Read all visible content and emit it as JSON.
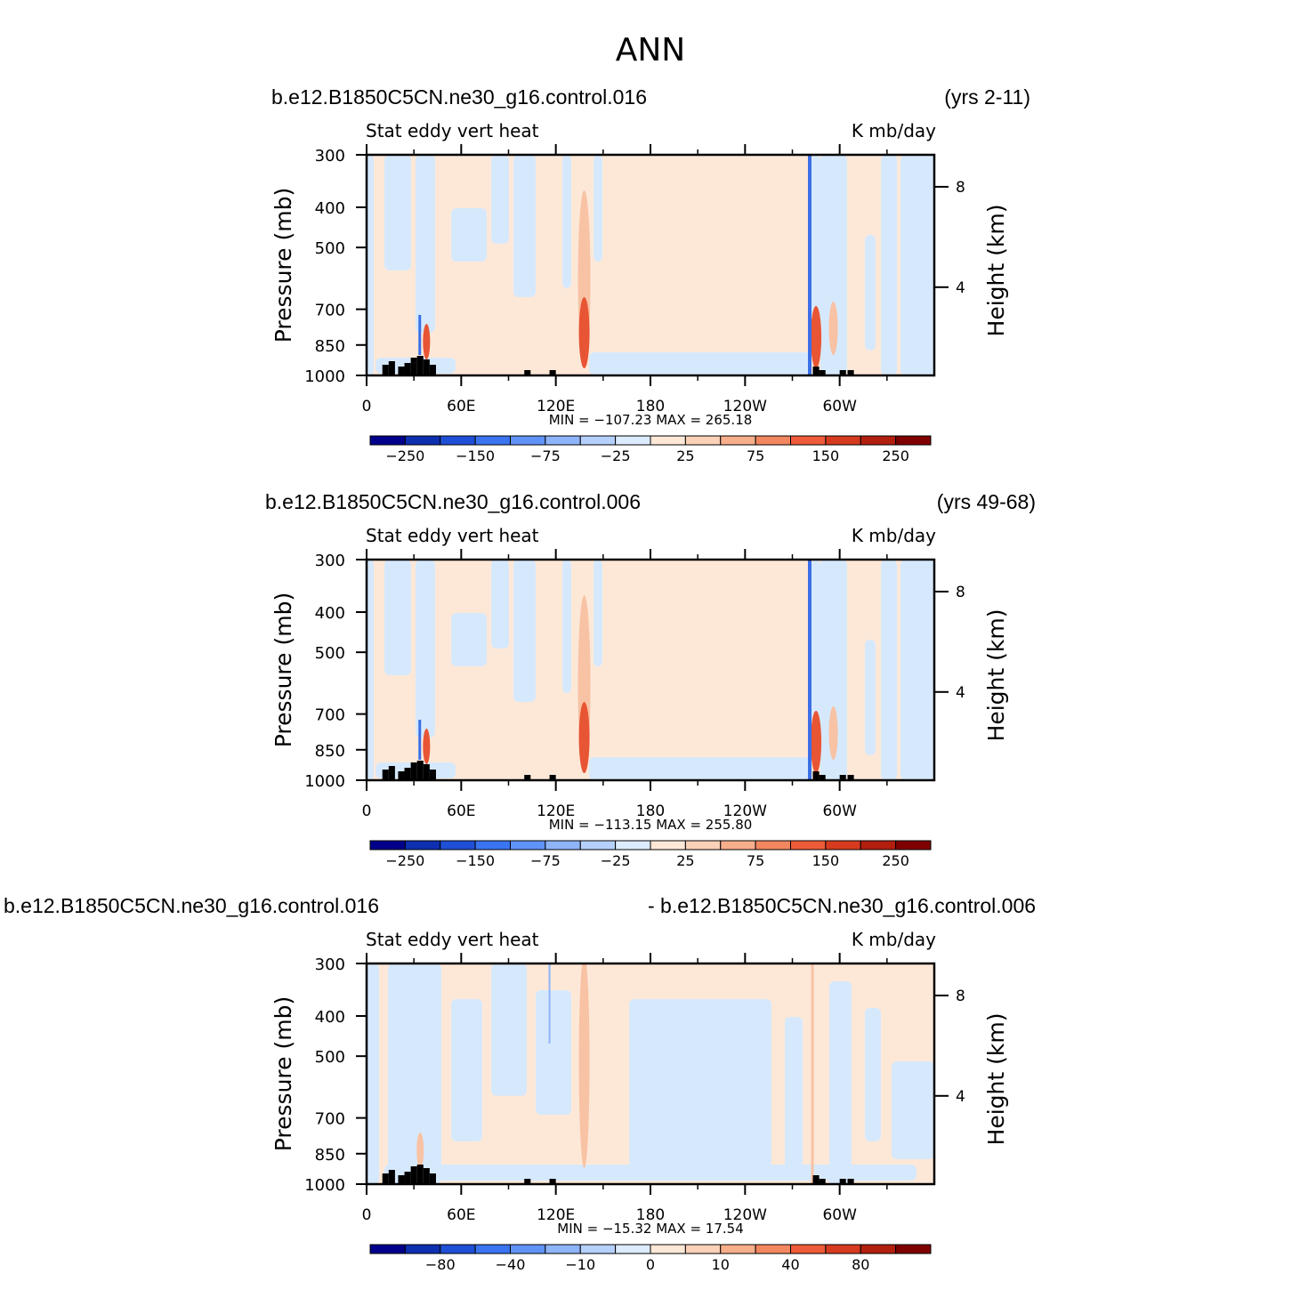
{
  "page_title": "ANN",
  "colors": {
    "black": "#000000",
    "orography": "#000000"
  },
  "chart_data": [
    {
      "type": "heatmap",
      "case_name": "b.e12.B1850C5CN.ne30_g16.control.016",
      "years": "(yrs 2-11)",
      "title_left": "Stat  eddy  vert  heat",
      "title_right": "K  mb/day",
      "ylabel": "Pressure  (mb)",
      "ylabel_right": "Height  (km)",
      "xlabel": "",
      "x_ticks": [
        "0",
        "60E",
        "120E",
        "180",
        "120W",
        "60W"
      ],
      "y_ticks": [
        "300",
        "400",
        "500",
        "700",
        "850",
        "1000"
      ],
      "y_right_ticks": [
        "8",
        "4"
      ],
      "min_max_text": "MIN  =  −107.23   MAX  =  265.18",
      "min": -107.23,
      "max": 265.18,
      "colorbar": {
        "labels": [
          "−250",
          "−150",
          "−75",
          "−25",
          "25",
          "75",
          "150",
          "250"
        ],
        "colors": [
          "#00008b",
          "#0d2fb0",
          "#1f4fd6",
          "#3a74f0",
          "#5f93f7",
          "#8eb4f9",
          "#b5d0fb",
          "#dcebfd",
          "#fde8d8",
          "#fbd1b8",
          "#f7ae8b",
          "#f38760",
          "#ee5b39",
          "#d63b1f",
          "#b31f0f",
          "#7f0000"
        ]
      },
      "fields": {
        "background": "#fde8d8",
        "light_blue": "#d6e9fc",
        "light_salmon": "#f8c2a4",
        "deep_red": "#e85534",
        "blue_line": "#3a6fe8"
      }
    },
    {
      "type": "heatmap",
      "case_name": "b.e12.B1850C5CN.ne30_g16.control.006",
      "years": "(yrs 49-68)",
      "title_left": "Stat  eddy  vert  heat",
      "title_right": "K  mb/day",
      "ylabel": "Pressure  (mb)",
      "ylabel_right": "Height  (km)",
      "xlabel": "",
      "x_ticks": [
        "0",
        "60E",
        "120E",
        "180",
        "120W",
        "60W"
      ],
      "y_ticks": [
        "300",
        "400",
        "500",
        "700",
        "850",
        "1000"
      ],
      "y_right_ticks": [
        "8",
        "4"
      ],
      "min_max_text": "MIN  =  −113.15   MAX  =  255.80",
      "min": -113.15,
      "max": 255.8,
      "colorbar": {
        "labels": [
          "−250",
          "−150",
          "−75",
          "−25",
          "25",
          "75",
          "150",
          "250"
        ],
        "colors": [
          "#00008b",
          "#0d2fb0",
          "#1f4fd6",
          "#3a74f0",
          "#5f93f7",
          "#8eb4f9",
          "#b5d0fb",
          "#dcebfd",
          "#fde8d8",
          "#fbd1b8",
          "#f7ae8b",
          "#f38760",
          "#ee5b39",
          "#d63b1f",
          "#b31f0f",
          "#7f0000"
        ]
      },
      "fields": {
        "background": "#fde8d8",
        "light_blue": "#d6e9fc",
        "light_salmon": "#f8c2a4",
        "deep_red": "#e85534",
        "blue_line": "#3a6fe8"
      }
    },
    {
      "type": "heatmap",
      "case_name": "b.e12.B1850C5CN.ne30_g16.control.016",
      "years": "- b.e12.B1850C5CN.ne30_g16.control.006",
      "title_left": "Stat  eddy  vert  heat",
      "title_right": "K  mb/day",
      "ylabel": "Pressure  (mb)",
      "ylabel_right": "Height  (km)",
      "xlabel": "",
      "x_ticks": [
        "0",
        "60E",
        "120E",
        "180",
        "120W",
        "60W"
      ],
      "y_ticks": [
        "300",
        "400",
        "500",
        "700",
        "850",
        "1000"
      ],
      "y_right_ticks": [
        "8",
        "4"
      ],
      "min_max_text": "MIN  =  −15.32   MAX  =   17.54",
      "min": -15.32,
      "max": 17.54,
      "colorbar": {
        "labels": [
          "−80",
          "−40",
          "−10",
          "0",
          "10",
          "40",
          "80"
        ],
        "colors": [
          "#00008b",
          "#0d2fb0",
          "#1f4fd6",
          "#3a74f0",
          "#5f93f7",
          "#8eb4f9",
          "#b5d0fb",
          "#dcebfd",
          "#fde8d8",
          "#fbd1b8",
          "#f7ae8b",
          "#f38760",
          "#ee5b39",
          "#d63b1f",
          "#b31f0f",
          "#7f0000"
        ]
      },
      "fields": {
        "background": "#fde8d8",
        "light_blue": "#d6e9fc",
        "light_salmon": "#f8c2a4",
        "deep_red": "#e85534",
        "blue_line": "#3a6fe8"
      }
    }
  ]
}
